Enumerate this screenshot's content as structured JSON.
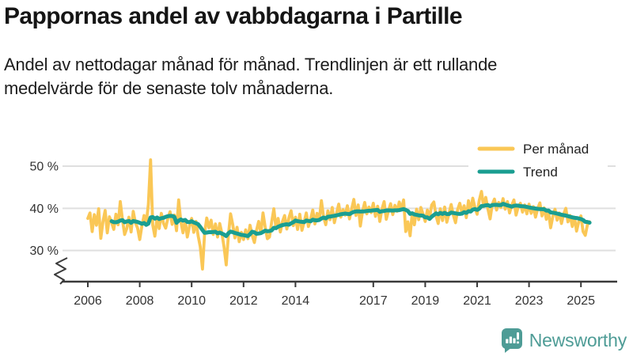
{
  "header": {
    "title": "Pappornas andel av vabbdagarna i Partille",
    "subtitle": "Andel av nettodagar månad för månad. Trendlinjen är ett rullande medelvärde för de senaste tolv månaderna.",
    "subtitle_lines": [
      "Andel av nettodagar månad för månad. Trendlinjen är ett rullande",
      "medelvärde för de senaste tolv månaderna."
    ]
  },
  "footer": {
    "brand_name": "Newsworthy",
    "brand_color": "#4E9C96",
    "logo_icon": "bar-chart-speech-bubble-icon"
  },
  "chart_data": {
    "type": "line",
    "unit": "%",
    "title": "Pappornas andel av vabbdagarna i Partille",
    "x": {
      "frequency": "monthly",
      "start_year": 2006,
      "start_month": 1,
      "end_year": 2025,
      "end_month": 5
    },
    "x_tick_labels": [
      "2006",
      "2008",
      "2010",
      "2012",
      "2014",
      "2017",
      "2019",
      "2021",
      "2023",
      "2025"
    ],
    "y_ticks": [
      {
        "value": 50,
        "label": "50 %"
      },
      {
        "value": 40,
        "label": "40 %"
      },
      {
        "value": 30,
        "label": "30 %"
      }
    ],
    "y_axis": {
      "broken": true,
      "visible_range": [
        23.5,
        53
      ]
    },
    "grid": "horizontal",
    "legend_position": "top-right",
    "series": [
      {
        "name": "Per månad",
        "color": "#FAC756",
        "values": [
          37.6,
          38.9,
          34.5,
          38.5,
          36.0,
          39.9,
          32.9,
          36.8,
          39.5,
          34.2,
          38.0,
          36.6,
          35.0,
          38.6,
          36.1,
          41.6,
          37.4,
          33.8,
          35.2,
          37.9,
          34.4,
          39.3,
          36.6,
          35.3,
          32.6,
          35.8,
          38.3,
          36.4,
          40.9,
          51.5,
          36.1,
          33.4,
          37.7,
          35.2,
          38.8,
          36.4,
          35.3,
          37.6,
          39.2,
          36.2,
          38.4,
          34.7,
          42.0,
          36.9,
          34.2,
          37.3,
          33.2,
          35.8,
          37.6,
          34.3,
          36.9,
          33.5,
          30.9,
          25.6,
          34.1,
          37.7,
          35.4,
          37.2,
          33.8,
          36.3,
          33.2,
          36.4,
          34.0,
          30.8,
          26.6,
          33.7,
          38.7,
          36.2,
          33.0,
          35.5,
          32.1,
          34.3,
          32.6,
          34.9,
          32.8,
          36.0,
          33.6,
          31.9,
          34.8,
          36.9,
          34.1,
          38.9,
          35.6,
          32.8,
          33.2,
          36.7,
          39.9,
          35.3,
          37.6,
          34.4,
          36.9,
          38.3,
          35.1,
          37.8,
          39.4,
          35.9,
          37.9,
          35.0,
          38.6,
          34.8,
          36.7,
          38.9,
          35.7,
          37.4,
          39.6,
          36.3,
          38.8,
          37.2,
          41.8,
          38.0,
          36.1,
          39.4,
          37.3,
          40.2,
          36.6,
          38.8,
          41.0,
          37.9,
          39.7,
          38.4,
          40.6,
          37.5,
          39.9,
          42.1,
          38.3,
          40.8,
          35.8,
          39.2,
          41.4,
          38.7,
          40.3,
          39.0,
          41.2,
          38.1,
          40.5,
          36.9,
          39.8,
          41.6,
          37.4,
          39.4,
          41.1,
          38.5,
          40.7,
          39.3,
          41.5,
          39.7,
          42.0,
          34.5,
          36.8,
          33.5,
          38.9,
          36.1,
          39.8,
          37.3,
          40.2,
          38.6,
          36.9,
          39.6,
          37.7,
          40.8,
          41.5,
          38.2,
          36.4,
          39.9,
          37.1,
          40.3,
          36.7,
          38.8,
          40.9,
          38.4,
          36.6,
          39.7,
          41.2,
          38.9,
          40.6,
          37.8,
          41.8,
          39.4,
          42.4,
          40.1,
          38.6,
          41.9,
          44.0,
          40.4,
          42.6,
          39.8,
          37.5,
          40.9,
          42.2,
          39.6,
          41.4,
          40.2,
          42.3,
          39.8,
          41.6,
          38.9,
          40.7,
          42.0,
          38.4,
          40.3,
          41.2,
          39.1,
          40.8,
          38.7,
          41.0,
          38.8,
          40.4,
          37.9,
          39.9,
          41.3,
          38.2,
          40.1,
          37.4,
          39.2,
          35.4,
          38.1,
          39.8,
          37.2,
          38.9,
          36.4,
          38.6,
          40.0,
          36.8,
          38.3,
          35.7,
          37.9,
          34.6,
          36.9,
          38.2,
          34.5,
          33.6,
          36.1,
          36.8
        ]
      },
      {
        "name": "Trend",
        "color": "#1A9E91",
        "derived_from": "rolling_mean_12_months"
      }
    ]
  }
}
